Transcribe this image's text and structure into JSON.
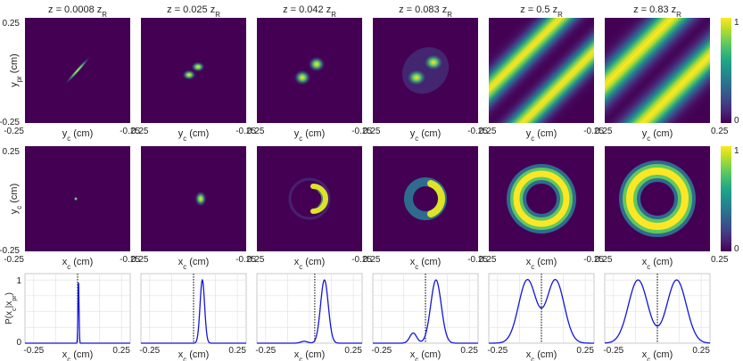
{
  "colors": {
    "viridis_low": "#440154",
    "viridis_mid": "#21918c",
    "viridis_high": "#fde725",
    "line": "#1515d8",
    "dotted": "#000000",
    "grid": "#e3e3e3"
  },
  "chart_data": [
    {
      "type": "heatmap",
      "row": "top",
      "colormap": "viridis",
      "panel_titles": [
        {
          "prefix": "z = 0.0008 z",
          "sub": "R"
        },
        {
          "prefix": "z = 0.025 z",
          "sub": "R"
        },
        {
          "prefix": "z = 0.042 z",
          "sub": "R"
        },
        {
          "prefix": "z = 0.083 z",
          "sub": "R"
        },
        {
          "prefix": "z = 0.5 z",
          "sub": "R"
        },
        {
          "prefix": "z = 0.83 z",
          "sub": "R"
        }
      ],
      "xlabel": {
        "main": "y",
        "sub": "c",
        "unit": " (cm)"
      },
      "ylabel": {
        "main": "y",
        "sub": "pr",
        "unit": " (cm)"
      },
      "x_ticks": [
        "-0.25",
        "0.25"
      ],
      "y_ticks": [
        "0.25",
        "-0.25"
      ],
      "xlim": [
        -0.25,
        0.25
      ],
      "ylim": [
        -0.25,
        0.25
      ],
      "colorbar": {
        "ticks": [
          "1",
          "0"
        ],
        "range": [
          0,
          1
        ]
      }
    },
    {
      "type": "heatmap",
      "row": "middle",
      "colormap": "viridis",
      "xlabel": {
        "main": "x",
        "sub": "c",
        "unit": " (cm)"
      },
      "ylabel": {
        "main": "y",
        "sub": "c",
        "unit": " (cm)"
      },
      "x_ticks": [
        "-0.25",
        "0.25"
      ],
      "y_ticks": [
        "0.25",
        "-0.25"
      ],
      "xlim": [
        -0.25,
        0.25
      ],
      "ylim": [
        -0.25,
        0.25
      ],
      "colorbar": {
        "ticks": [
          "1",
          "0"
        ],
        "range": [
          0,
          1
        ]
      }
    },
    {
      "type": "line",
      "row": "bottom",
      "xlabel": {
        "main": "x",
        "sub": "c",
        "unit": " (cm)"
      },
      "ylabel": {
        "text": "P(x",
        "sub1": "c",
        "mid": "|x",
        "sub2": "pr",
        "end": ")"
      },
      "x_ticks": [
        "-0.25",
        "0.25"
      ],
      "y_ticks": [
        "1",
        "0"
      ],
      "xlim": [
        -0.3,
        0.3
      ],
      "ylim": [
        0,
        1.1
      ],
      "grid": true,
      "panels": [
        {
          "threshold": 0.0,
          "series": [
            {
              "amp": 1.0,
              "mu": 0.005,
              "sigma": 0.003
            }
          ]
        },
        {
          "threshold": 0.0,
          "series": [
            {
              "amp": 1.0,
              "mu": 0.05,
              "sigma": 0.013
            }
          ]
        },
        {
          "threshold": 0.03,
          "series": [
            {
              "amp": 1.0,
              "mu": 0.085,
              "sigma": 0.022
            },
            {
              "amp": 0.03,
              "mu": -0.03,
              "sigma": 0.02
            }
          ]
        },
        {
          "threshold": 0.0,
          "series": [
            {
              "amp": 1.0,
              "mu": 0.06,
              "sigma": 0.03
            },
            {
              "amp": 0.16,
              "mu": -0.07,
              "sigma": 0.02
            }
          ]
        },
        {
          "threshold": 0.0,
          "series": [
            {
              "amp": 1.0,
              "mu": 0.08,
              "sigma": 0.05
            },
            {
              "amp": 1.0,
              "mu": -0.08,
              "sigma": 0.05
            }
          ]
        },
        {
          "threshold": 0.0,
          "series": [
            {
              "amp": 1.0,
              "mu": 0.11,
              "sigma": 0.055
            },
            {
              "amp": 1.0,
              "mu": -0.11,
              "sigma": 0.055
            }
          ]
        }
      ]
    }
  ]
}
